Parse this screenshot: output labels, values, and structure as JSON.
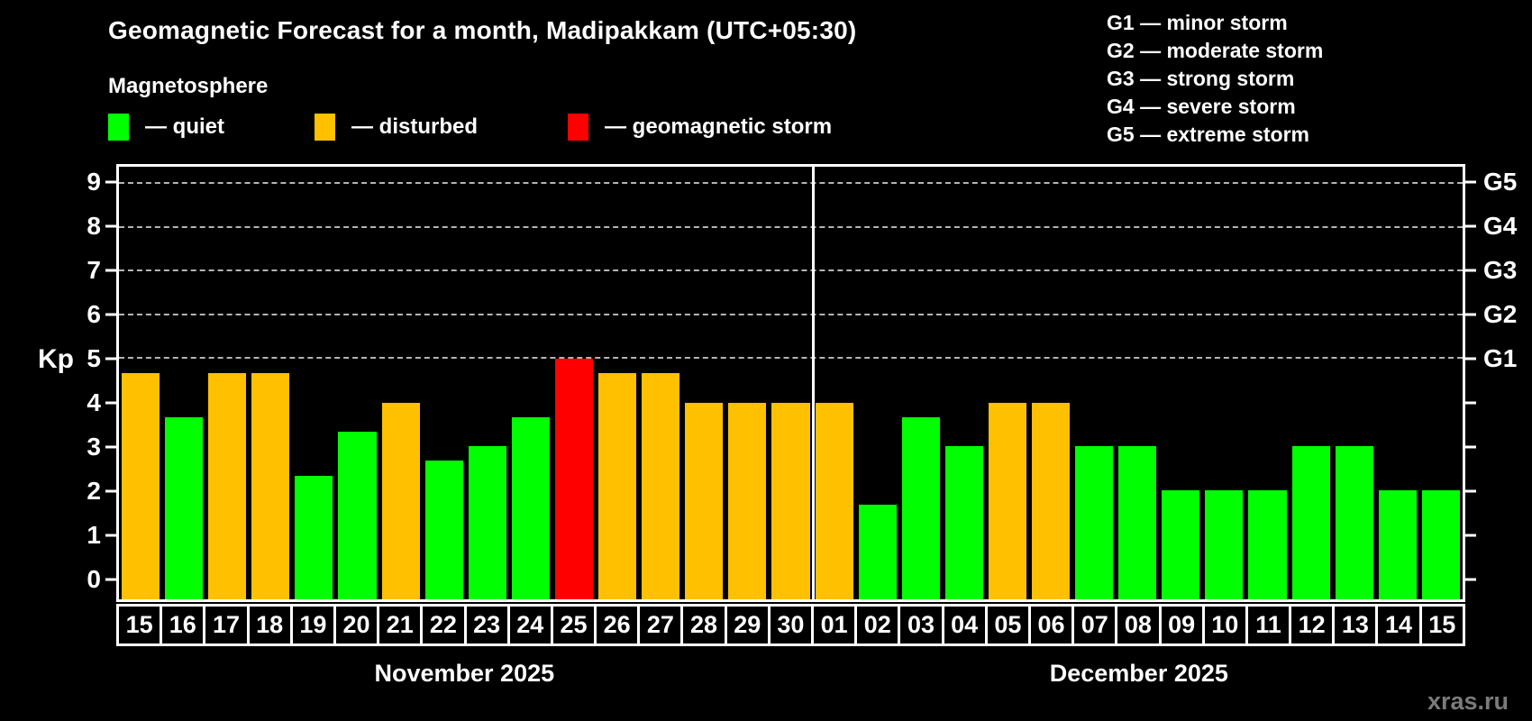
{
  "title": "Geomagnetic Forecast for a month, Madipakkam (UTC+05:30)",
  "subtitle": "Magnetosphere",
  "legend": [
    {
      "label": "— quiet",
      "color": "#00ff00"
    },
    {
      "label": "— disturbed",
      "color": "#ffc000"
    },
    {
      "label": "— geomagnetic storm",
      "color": "#ff0000"
    }
  ],
  "g_legend": [
    "G1 — minor storm",
    "G2 — moderate storm",
    "G3 — strong storm",
    "G4 — severe storm",
    "G5 — extreme storm"
  ],
  "watermark": "xras.ru",
  "chart_data": {
    "type": "bar",
    "title": "Geomagnetic Forecast for a month, Madipakkam (UTC+05:30)",
    "ylabel": "Kp",
    "ylim": [
      0,
      9
    ],
    "y_ticks": [
      0,
      1,
      2,
      3,
      4,
      5,
      6,
      7,
      8,
      9
    ],
    "grid_levels": [
      5,
      6,
      7,
      8,
      9
    ],
    "grid": "dashed",
    "right_axis_labels": [
      {
        "value": 5,
        "label": "G1"
      },
      {
        "value": 6,
        "label": "G2"
      },
      {
        "value": 7,
        "label": "G3"
      },
      {
        "value": 8,
        "label": "G4"
      },
      {
        "value": 9,
        "label": "G5"
      }
    ],
    "colors": {
      "quiet": "#00ff00",
      "disturbed": "#ffc000",
      "storm": "#ff0000"
    },
    "months": [
      {
        "label": "November 2025",
        "days": [
          {
            "day": "15",
            "kp": 4.67,
            "status": "disturbed"
          },
          {
            "day": "16",
            "kp": 3.67,
            "status": "quiet"
          },
          {
            "day": "17",
            "kp": 4.67,
            "status": "disturbed"
          },
          {
            "day": "18",
            "kp": 4.67,
            "status": "disturbed"
          },
          {
            "day": "19",
            "kp": 2.33,
            "status": "quiet"
          },
          {
            "day": "20",
            "kp": 3.33,
            "status": "quiet"
          },
          {
            "day": "21",
            "kp": 4.0,
            "status": "disturbed"
          },
          {
            "day": "22",
            "kp": 2.67,
            "status": "quiet"
          },
          {
            "day": "23",
            "kp": 3.0,
            "status": "quiet"
          },
          {
            "day": "24",
            "kp": 3.67,
            "status": "quiet"
          },
          {
            "day": "25",
            "kp": 5.0,
            "status": "storm"
          },
          {
            "day": "26",
            "kp": 4.67,
            "status": "disturbed"
          },
          {
            "day": "27",
            "kp": 4.67,
            "status": "disturbed"
          },
          {
            "day": "28",
            "kp": 4.0,
            "status": "disturbed"
          },
          {
            "day": "29",
            "kp": 4.0,
            "status": "disturbed"
          },
          {
            "day": "30",
            "kp": 4.0,
            "status": "disturbed"
          }
        ]
      },
      {
        "label": "December 2025",
        "days": [
          {
            "day": "01",
            "kp": 4.0,
            "status": "disturbed"
          },
          {
            "day": "02",
            "kp": 1.67,
            "status": "quiet"
          },
          {
            "day": "03",
            "kp": 3.67,
            "status": "quiet"
          },
          {
            "day": "04",
            "kp": 3.0,
            "status": "quiet"
          },
          {
            "day": "05",
            "kp": 4.0,
            "status": "disturbed"
          },
          {
            "day": "06",
            "kp": 4.0,
            "status": "disturbed"
          },
          {
            "day": "07",
            "kp": 3.0,
            "status": "quiet"
          },
          {
            "day": "08",
            "kp": 3.0,
            "status": "quiet"
          },
          {
            "day": "09",
            "kp": 2.0,
            "status": "quiet"
          },
          {
            "day": "10",
            "kp": 2.0,
            "status": "quiet"
          },
          {
            "day": "11",
            "kp": 2.0,
            "status": "quiet"
          },
          {
            "day": "12",
            "kp": 3.0,
            "status": "quiet"
          },
          {
            "day": "13",
            "kp": 3.0,
            "status": "quiet"
          },
          {
            "day": "14",
            "kp": 2.0,
            "status": "quiet"
          },
          {
            "day": "15",
            "kp": 2.0,
            "status": "quiet"
          }
        ]
      }
    ]
  }
}
